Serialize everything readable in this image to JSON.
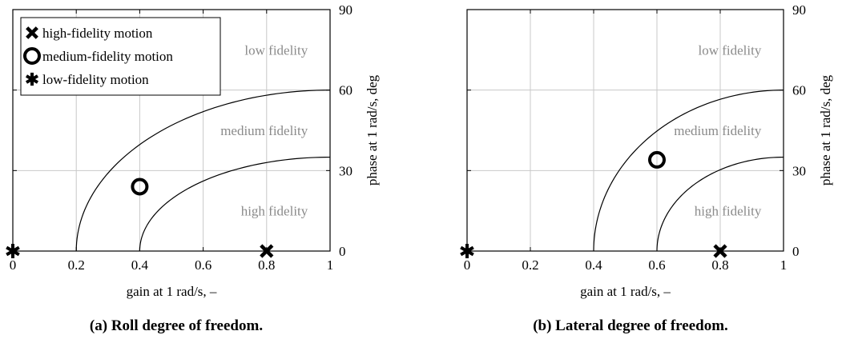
{
  "chart_data": [
    {
      "type": "scatter",
      "caption": "(a) Roll degree of freedom.",
      "xlabel": "gain at 1 rad/s, –",
      "ylabel": "phase at 1 rad/s, deg",
      "xlim": [
        0,
        1
      ],
      "ylim": [
        0,
        90
      ],
      "xticks": [
        "0",
        "0.2",
        "0.4",
        "0.6",
        "0.8",
        "1"
      ],
      "yticks": [
        "0",
        "30",
        "60",
        "90"
      ],
      "grid": true,
      "legend_position": "top-left",
      "legend": [
        {
          "marker": "x",
          "label": "high-fidelity motion"
        },
        {
          "marker": "o",
          "label": "medium-fidelity motion"
        },
        {
          "marker": "asterisk",
          "label": "low-fidelity motion"
        }
      ],
      "regions": [
        {
          "label": "low fidelity",
          "x": 0.93,
          "y": 75
        },
        {
          "label": "medium fidelity",
          "x": 0.93,
          "y": 45
        },
        {
          "label": "high fidelity",
          "x": 0.93,
          "y": 15
        }
      ],
      "boundaries": [
        {
          "x0": 0.2,
          "y_max": 60
        },
        {
          "x0": 0.4,
          "y_max": 35
        }
      ],
      "points": [
        {
          "marker": "x",
          "x": 0.8,
          "y": 0
        },
        {
          "marker": "o",
          "x": 0.4,
          "y": 24
        },
        {
          "marker": "asterisk",
          "x": 0.0,
          "y": 0
        }
      ]
    },
    {
      "type": "scatter",
      "caption": "(b) Lateral degree of freedom.",
      "xlabel": "gain at 1 rad/s, –",
      "ylabel": "phase at 1 rad/s, deg",
      "xlim": [
        0,
        1
      ],
      "ylim": [
        0,
        90
      ],
      "xticks": [
        "0",
        "0.2",
        "0.4",
        "0.6",
        "0.8",
        "1"
      ],
      "yticks": [
        "0",
        "30",
        "60",
        "90"
      ],
      "grid": true,
      "legend_position": "none",
      "legend": [],
      "regions": [
        {
          "label": "low fidelity",
          "x": 0.93,
          "y": 75
        },
        {
          "label": "medium fidelity",
          "x": 0.93,
          "y": 45
        },
        {
          "label": "high fidelity",
          "x": 0.93,
          "y": 15
        }
      ],
      "boundaries": [
        {
          "x0": 0.4,
          "y_max": 60
        },
        {
          "x0": 0.6,
          "y_max": 35
        }
      ],
      "points": [
        {
          "marker": "x",
          "x": 0.8,
          "y": 0
        },
        {
          "marker": "o",
          "x": 0.6,
          "y": 34
        },
        {
          "marker": "asterisk",
          "x": 0.0,
          "y": 0
        }
      ]
    }
  ]
}
